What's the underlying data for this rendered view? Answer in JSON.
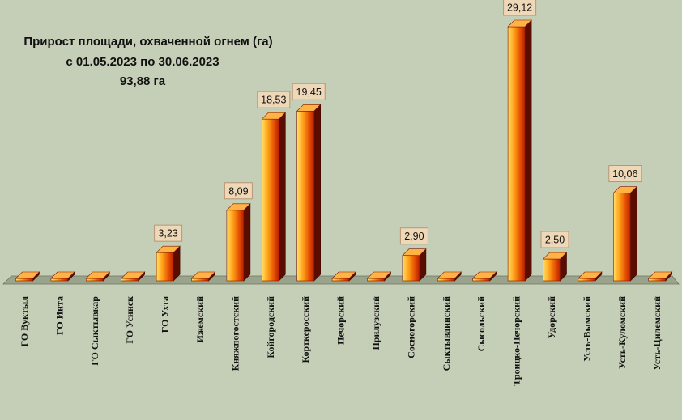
{
  "chart_data": {
    "type": "bar",
    "title_lines": [
      "Прирост площади, охваченной огнем (га)",
      "с 01.05.2023  по  30.06.2023",
      "93,88 га"
    ],
    "categories": [
      "ГО Вуктыл",
      "ГО Инта",
      "ГО Сыктывкар",
      "ГО Усинск",
      "ГО Ухта",
      "Ижемский",
      "Княжпогостский",
      "Койгородский",
      "Корткеросский",
      "Печорский",
      "Прилузский",
      "Сосногорский",
      "Сыктывдинский",
      "Сысольский",
      "Троицко-Печорский",
      "Удорский",
      "Усть-Вымский",
      "Усть-Куломский",
      "Усть-Цилемский"
    ],
    "values": [
      0,
      0,
      0,
      0,
      3.23,
      0,
      8.09,
      18.53,
      19.45,
      0,
      0,
      2.9,
      0,
      0,
      29.12,
      2.5,
      0,
      10.06,
      0
    ],
    "data_labels": [
      "",
      "",
      "",
      "",
      "3,23",
      "",
      "8,09",
      "18,53",
      "19,45",
      "",
      "",
      "2,90",
      "",
      "",
      "29,12",
      "2,50",
      "",
      "10,06",
      ""
    ],
    "ylim": [
      0,
      30
    ],
    "grid": false,
    "legend": "none",
    "colors": {
      "background": "#c5ceb6",
      "bar_light": "#ffe066",
      "bar_mid": "#ff8c1a",
      "bar_dark": "#c62a00",
      "bar_side": "#5a0c00",
      "bar_top": "#ffb347",
      "label_box": "#efd8b8",
      "label_border": "#b89676",
      "floor": "#9aa38c"
    }
  }
}
